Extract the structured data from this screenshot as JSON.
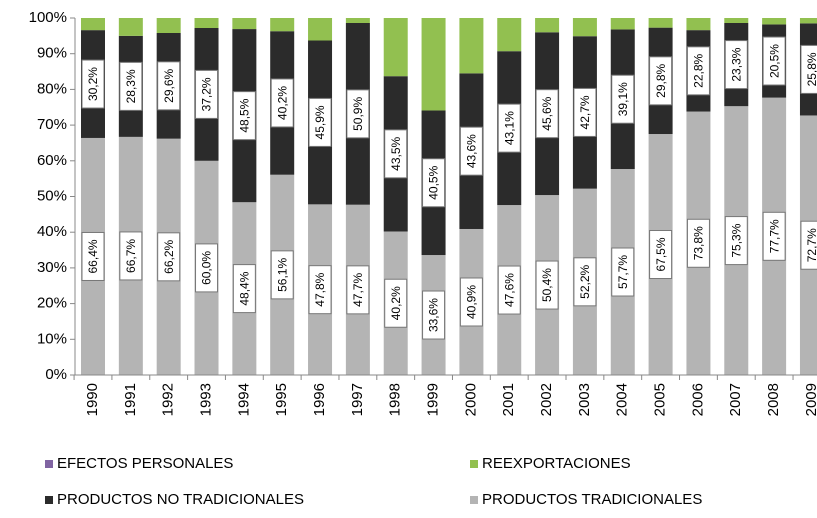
{
  "chart_data": {
    "type": "stacked_bar",
    "categories": [
      "1990",
      "1991",
      "1992",
      "1993",
      "1994",
      "1995",
      "1996",
      "1997",
      "1998",
      "1999",
      "2000",
      "2001",
      "2002",
      "2003",
      "2004",
      "2005",
      "2006",
      "2007",
      "2008",
      "2009"
    ],
    "series": [
      {
        "name": "PRODUCTOS TRADICIONALES",
        "color": "#b4b4b4",
        "values": [
          66.4,
          66.7,
          66.2,
          60.0,
          48.4,
          56.1,
          47.8,
          47.7,
          40.2,
          33.6,
          40.9,
          47.6,
          50.4,
          52.2,
          57.7,
          67.5,
          73.8,
          75.3,
          77.7,
          72.7
        ],
        "value_labels": [
          "66,4%",
          "66,7%",
          "66,2%",
          "60,0%",
          "48,4%",
          "56,1%",
          "47,8%",
          "47,7%",
          "40,2%",
          "33,6%",
          "40,9%",
          "47,6%",
          "50,4%",
          "52,2%",
          "57,7%",
          "67,5%",
          "73,8%",
          "75,3%",
          "77,7%",
          "72,7%"
        ]
      },
      {
        "name": "PRODUCTOS NO TRADICIONALES",
        "color": "#2b2b2b",
        "values": [
          30.2,
          28.3,
          29.6,
          37.2,
          48.5,
          40.2,
          45.9,
          50.9,
          43.5,
          40.5,
          43.6,
          43.1,
          45.6,
          42.7,
          39.1,
          29.8,
          22.8,
          23.3,
          20.5,
          25.8
        ],
        "value_labels": [
          "30,2%",
          "28,3%",
          "29,6%",
          "37,2%",
          "48,5%",
          "40,2%",
          "45,9%",
          "50,9%",
          "43,5%",
          "40,5%",
          "43,6%",
          "43,1%",
          "45,6%",
          "42,7%",
          "39,1%",
          "29,8%",
          "22,8%",
          "23,3%",
          "20,5%",
          "25,8%"
        ]
      },
      {
        "name": "REEXPORTACIONES",
        "color": "#92c050",
        "values": [
          3.4,
          5.0,
          4.2,
          2.8,
          3.1,
          3.7,
          6.3,
          1.4,
          16.3,
          25.9,
          15.5,
          9.3,
          4.0,
          5.1,
          3.2,
          2.7,
          3.4,
          1.4,
          1.8,
          1.5
        ]
      },
      {
        "name": "EFECTOS PERSONALES",
        "color": "#8064a2",
        "values": [
          0,
          0,
          0,
          0,
          0,
          0,
          0,
          0,
          0,
          0,
          0,
          0,
          0,
          0,
          0,
          0,
          0,
          0,
          0,
          0
        ]
      }
    ],
    "ylim": [
      0,
      100
    ],
    "yticks": [
      {
        "value": 0,
        "label": "0%"
      },
      {
        "value": 10,
        "label": "10%"
      },
      {
        "value": 20,
        "label": "20%"
      },
      {
        "value": 30,
        "label": "30%"
      },
      {
        "value": 40,
        "label": "40%"
      },
      {
        "value": 50,
        "label": "50%"
      },
      {
        "value": 60,
        "label": "60%"
      },
      {
        "value": 70,
        "label": "70%"
      },
      {
        "value": 80,
        "label": "80%"
      },
      {
        "value": 90,
        "label": "90%"
      },
      {
        "value": 100,
        "label": "100%"
      }
    ],
    "legend_order": [
      "EFECTOS PERSONALES",
      "REEXPORTACIONES",
      "PRODUCTOS NO TRADICIONALES",
      "PRODUCTOS TRADICIONALES"
    ]
  }
}
